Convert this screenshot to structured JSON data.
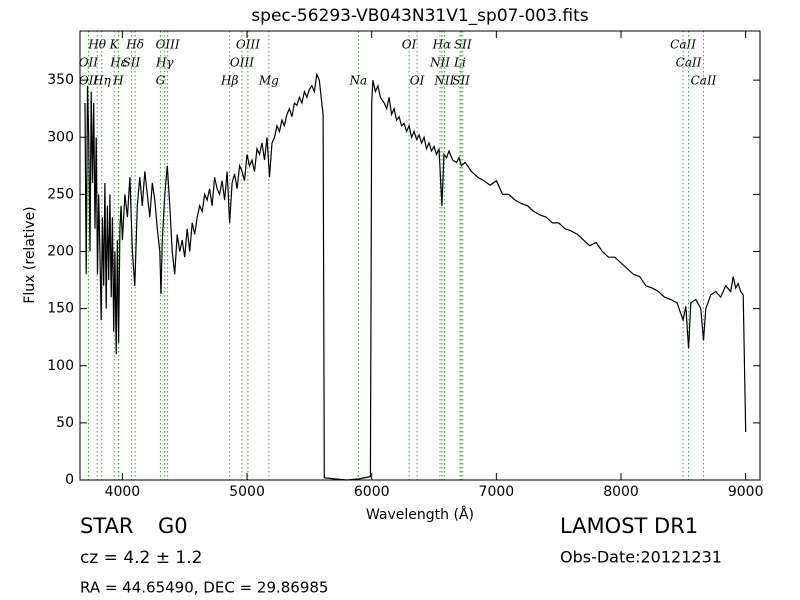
{
  "chart_data": {
    "type": "line",
    "title": "spec-56293-VB043N31V1_sp07-003.fits",
    "x_label": "Wavelength (Å)",
    "y_label": "Flux (relative)",
    "color": "#000000",
    "line_color": "#33aa33",
    "xlim": [
      3660,
      9115
    ],
    "ylim": [
      0,
      393
    ],
    "xticks": [
      4000,
      5000,
      6000,
      7000,
      8000,
      9000
    ],
    "yticks": [
      0,
      50,
      100,
      150,
      200,
      250,
      300,
      350
    ],
    "x": [
      3700,
      3710,
      3720,
      3730,
      3740,
      3750,
      3760,
      3770,
      3780,
      3790,
      3800,
      3810,
      3820,
      3830,
      3840,
      3850,
      3860,
      3870,
      3880,
      3890,
      3900,
      3910,
      3920,
      3930,
      3940,
      3950,
      3960,
      3970,
      3980,
      3990,
      4000,
      4020,
      4040,
      4060,
      4080,
      4100,
      4120,
      4140,
      4160,
      4180,
      4200,
      4220,
      4240,
      4260,
      4280,
      4300,
      4310,
      4320,
      4340,
      4360,
      4380,
      4400,
      4420,
      4440,
      4460,
      4480,
      4500,
      4520,
      4540,
      4560,
      4580,
      4600,
      4620,
      4640,
      4660,
      4680,
      4700,
      4720,
      4740,
      4760,
      4780,
      4800,
      4820,
      4840,
      4860,
      4880,
      4900,
      4920,
      4940,
      4960,
      4980,
      5000,
      5020,
      5040,
      5060,
      5080,
      5100,
      5120,
      5140,
      5160,
      5180,
      5200,
      5220,
      5240,
      5260,
      5280,
      5300,
      5320,
      5340,
      5360,
      5380,
      5400,
      5420,
      5440,
      5460,
      5480,
      5500,
      5520,
      5540,
      5560,
      5580,
      5600,
      5610,
      5620,
      5700,
      5800,
      5900,
      5990,
      6000,
      6010,
      6030,
      6050,
      6070,
      6100,
      6120,
      6140,
      6160,
      6180,
      6200,
      6220,
      6240,
      6260,
      6280,
      6300,
      6320,
      6340,
      6360,
      6380,
      6400,
      6420,
      6440,
      6460,
      6480,
      6500,
      6520,
      6540,
      6563,
      6580,
      6600,
      6620,
      6650,
      6680,
      6700,
      6720,
      6750,
      6800,
      6850,
      6900,
      6950,
      7000,
      7050,
      7100,
      7150,
      7200,
      7250,
      7300,
      7350,
      7400,
      7450,
      7500,
      7550,
      7600,
      7650,
      7700,
      7750,
      7800,
      7850,
      7900,
      7950,
      8000,
      8050,
      8100,
      8150,
      8200,
      8250,
      8300,
      8350,
      8400,
      8450,
      8498,
      8520,
      8542,
      8560,
      8600,
      8640,
      8662,
      8680,
      8720,
      8760,
      8800,
      8840,
      8880,
      8900,
      8920,
      8940,
      8960,
      8980,
      9000
    ],
    "values": [
      330,
      180,
      345,
      300,
      200,
      340,
      260,
      330,
      220,
      300,
      180,
      250,
      200,
      140,
      230,
      170,
      260,
      150,
      240,
      175,
      250,
      160,
      230,
      130,
      200,
      110,
      210,
      120,
      220,
      240,
      210,
      250,
      230,
      265,
      200,
      170,
      240,
      265,
      240,
      270,
      250,
      230,
      260,
      245,
      220,
      200,
      163,
      210,
      250,
      275,
      240,
      200,
      180,
      215,
      200,
      210,
      195,
      220,
      200,
      225,
      215,
      230,
      240,
      235,
      250,
      245,
      255,
      240,
      265,
      255,
      250,
      262,
      245,
      270,
      225,
      260,
      268,
      255,
      275,
      270,
      262,
      285,
      275,
      280,
      270,
      290,
      285,
      295,
      280,
      300,
      265,
      295,
      300,
      310,
      305,
      315,
      310,
      320,
      325,
      318,
      330,
      328,
      335,
      330,
      340,
      335,
      342,
      345,
      340,
      355,
      350,
      330,
      320,
      2,
      1,
      0,
      1,
      3,
      330,
      350,
      340,
      345,
      335,
      330,
      325,
      335,
      320,
      325,
      315,
      318,
      310,
      312,
      305,
      310,
      300,
      305,
      298,
      302,
      295,
      300,
      290,
      295,
      288,
      292,
      285,
      290,
      240,
      285,
      282,
      288,
      280,
      278,
      282,
      275,
      278,
      270,
      265,
      262,
      258,
      262,
      250,
      250,
      245,
      242,
      240,
      235,
      232,
      230,
      225,
      225,
      220,
      218,
      215,
      210,
      205,
      208,
      200,
      195,
      195,
      190,
      185,
      180,
      178,
      170,
      168,
      165,
      160,
      158,
      155,
      140,
      152,
      115,
      155,
      158,
      150,
      122,
      150,
      162,
      165,
      160,
      170,
      165,
      178,
      168,
      172,
      165,
      162,
      42
    ],
    "line_labels": [
      [
        {
          "label": "Hθ",
          "x": 3798
        },
        {
          "label": "K",
          "x": 3934
        },
        {
          "label": "Hδ",
          "x": 4102
        },
        {
          "label": "OIII",
          "x": 4363
        },
        {
          "label": "OIII",
          "x": 5007
        },
        {
          "label": "OI",
          "x": 6300
        },
        {
          "label": "Hα",
          "x": 6563
        },
        {
          "label": "SII",
          "x": 6731
        },
        {
          "label": "CaII",
          "x": 8498
        }
      ],
      [
        {
          "label": "OII",
          "x": 3727
        },
        {
          "label": "Hε",
          "x": 3970
        },
        {
          "label": "SII",
          "x": 4072
        },
        {
          "label": "Hγ",
          "x": 4340
        },
        {
          "label": "OIII",
          "x": 4959
        },
        {
          "label": "NII",
          "x": 6548
        },
        {
          "label": "Li",
          "x": 6708
        },
        {
          "label": "CaII",
          "x": 8542
        }
      ],
      [
        {
          "label": "OII",
          "x": 3729
        },
        {
          "label": "Hη",
          "x": 3835
        },
        {
          "label": "H",
          "x": 3968
        },
        {
          "label": "G",
          "x": 4305
        },
        {
          "label": "Hβ",
          "x": 4861
        },
        {
          "label": "Mg",
          "x": 5175
        },
        {
          "label": "Na",
          "x": 5893
        },
        {
          "label": "OI",
          "x": 6364
        },
        {
          "label": "NII",
          "x": 6583
        },
        {
          "label": "SII",
          "x": 6717
        },
        {
          "label": "CaII",
          "x": 8662
        }
      ]
    ]
  },
  "info": {
    "class": "STAR",
    "subclass": "G0",
    "cz": "cz = 4.2 ± 1.2",
    "coords": "RA = 44.65490, DEC = 29.86985",
    "survey": "LAMOST DR1",
    "obs_date": "Obs-Date:20121231"
  }
}
